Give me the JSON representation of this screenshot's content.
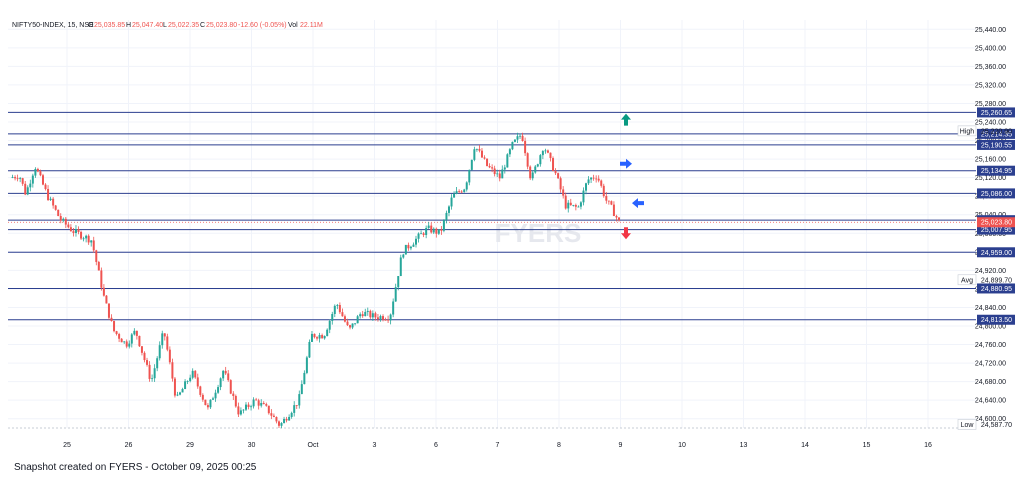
{
  "header": {
    "symbol": "NIFTY50-INDEX, 15, NSE",
    "o_label": "O",
    "o_value": "25,035.85",
    "h_label": "H",
    "h_value": "25,047.40",
    "l_label": "L",
    "l_value": "25,022.35",
    "c_label": "C",
    "c_value": "25,023.80",
    "change": "-12.60 (-0.05%)",
    "vol_label": "Vol",
    "vol_value": "22.11M"
  },
  "watermark": "FYERS",
  "snapshot_text": "Snapshot created on FYERS - October 09, 2025 00:25",
  "colors": {
    "up": "#26a69a",
    "down": "#ef5350",
    "level": "#2b3f8f",
    "current": "#ef5350"
  },
  "chart_data": {
    "type": "candlestick",
    "ylim": [
      24580,
      25460
    ],
    "y_ticks": [
      24600,
      24640,
      24680,
      24720,
      24760,
      24800,
      24840,
      24880,
      24920,
      24960,
      25000,
      25040,
      25080,
      25120,
      25160,
      25200,
      25240,
      25280,
      25320,
      25360,
      25400,
      25440
    ],
    "y_tick_labels": [
      "24,600.00",
      "24,640.00",
      "24,680.00",
      "24,720.00",
      "24,760.00",
      "24,800.00",
      "24,840.00",
      "24,880.00",
      "24,920.00",
      "24,960.00",
      "25,000.00",
      "25,040.00",
      "25,080.00",
      "25,120.00",
      "25,160.00",
      "25,200.00",
      "25,240.00",
      "25,280.00",
      "25,320.00",
      "25,360.00",
      "25,400.00",
      "25,440.00"
    ],
    "x_labels": [
      "25",
      "26",
      "29",
      "30",
      "Oct",
      "3",
      "6",
      "7",
      "8",
      "9",
      "10",
      "13",
      "14",
      "15",
      "16"
    ],
    "levels": [
      25260.65,
      25214.35,
      25190.55,
      25134.95,
      25086.0,
      25028.25,
      25007.95,
      24959.0,
      24880.95,
      24813.5
    ],
    "level_labels": [
      "25,260.65",
      "25,214.35",
      "25,190.55",
      "25,134.95",
      "25,086.00",
      "25,028.25",
      "25,007.95",
      "24,959.00",
      "24,880.95",
      "24,813.50"
    ],
    "current_price": 25023.8,
    "current_label": "25,023.80",
    "markers": [
      {
        "label": "High",
        "value": 25220.9,
        "text": "25,220.90"
      },
      {
        "label": "Avg",
        "value": 24899.7,
        "text": "24,899.70"
      },
      {
        "label": "Low",
        "value": 24587.7,
        "text": "24,587.70"
      }
    ],
    "arrows": [
      {
        "dir": "up",
        "x": 9.1,
        "y": 25245,
        "color": "#089981"
      },
      {
        "dir": "right",
        "x": 9.05,
        "y": 25150,
        "color": "#2962ff"
      },
      {
        "dir": "left",
        "x": 9.3,
        "y": 25065,
        "color": "#2962ff"
      },
      {
        "dir": "down",
        "x": 9.1,
        "y": 25000,
        "color": "#f23645"
      }
    ],
    "price_path_days": [
      [
        0,
        25120
      ],
      [
        0.3,
        25125
      ],
      [
        0.5,
        25085
      ],
      [
        0.8,
        25145
      ],
      [
        1.2,
        25080
      ],
      [
        1.6,
        25030
      ],
      [
        2.0,
        25005
      ],
      [
        2.6,
        24985
      ],
      [
        3.0,
        24860
      ],
      [
        3.3,
        24790
      ],
      [
        3.7,
        24760
      ],
      [
        4.0,
        24790
      ],
      [
        4.5,
        24680
      ],
      [
        4.9,
        24790
      ],
      [
        5.3,
        24640
      ],
      [
        5.8,
        24700
      ],
      [
        6.3,
        24620
      ],
      [
        6.8,
        24705
      ],
      [
        7.3,
        24610
      ],
      [
        7.8,
        24640
      ],
      [
        8.2,
        24620
      ],
      [
        8.6,
        24585
      ],
      [
        9.2,
        24640
      ],
      [
        9.6,
        24780
      ],
      [
        10.0,
        24780
      ],
      [
        10.4,
        24850
      ],
      [
        10.8,
        24790
      ],
      [
        11.2,
        24830
      ],
      [
        11.6,
        24820
      ],
      [
        12.1,
        24820
      ],
      [
        12.5,
        24960
      ],
      [
        12.9,
        24985
      ],
      [
        13.3,
        25010
      ],
      [
        13.7,
        25000
      ],
      [
        14.1,
        25080
      ],
      [
        14.5,
        25100
      ],
      [
        14.8,
        25190
      ],
      [
        15.2,
        25145
      ],
      [
        15.6,
        25120
      ],
      [
        16.0,
        25190
      ],
      [
        16.3,
        25215
      ],
      [
        16.6,
        25115
      ],
      [
        17.0,
        25190
      ],
      [
        17.4,
        25125
      ],
      [
        17.7,
        25060
      ],
      [
        18.1,
        25055
      ],
      [
        18.4,
        25115
      ],
      [
        18.7,
        25125
      ],
      [
        19.0,
        25070
      ],
      [
        19.2,
        25050
      ],
      [
        19.4,
        25024
      ]
    ]
  }
}
